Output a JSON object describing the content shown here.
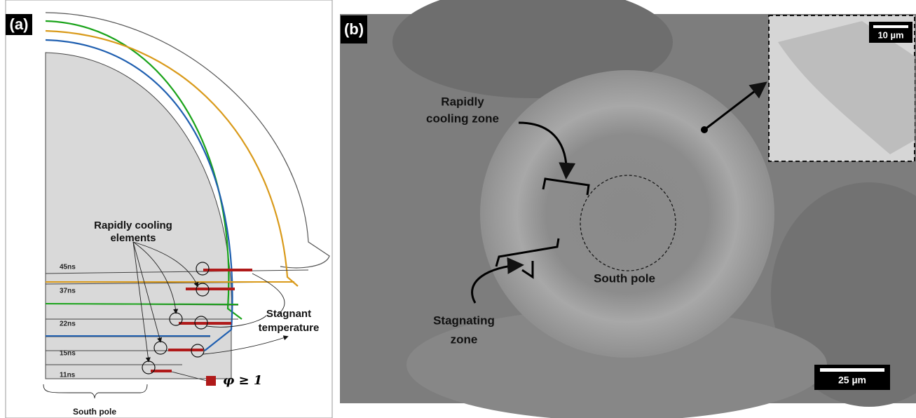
{
  "panel_a": {
    "label": "(a)",
    "rapidly_cooling": [
      "Rapidly cooling",
      "elements"
    ],
    "stagnant": [
      "Stagnant",
      "temperature"
    ],
    "times": [
      "45ns",
      "37ns",
      "22ns",
      "15ns",
      "11ns"
    ],
    "legend": "φ ≥ 1",
    "bottom_label": "South pole"
  },
  "panel_b": {
    "label": "(b)",
    "rapidly_cooling": [
      "Rapidly",
      "cooling zone"
    ],
    "stagnating": [
      "Stagnating",
      "zone"
    ],
    "south_pole": "South pole",
    "inset_scale": "10 µm",
    "scale": "25 µm"
  }
}
